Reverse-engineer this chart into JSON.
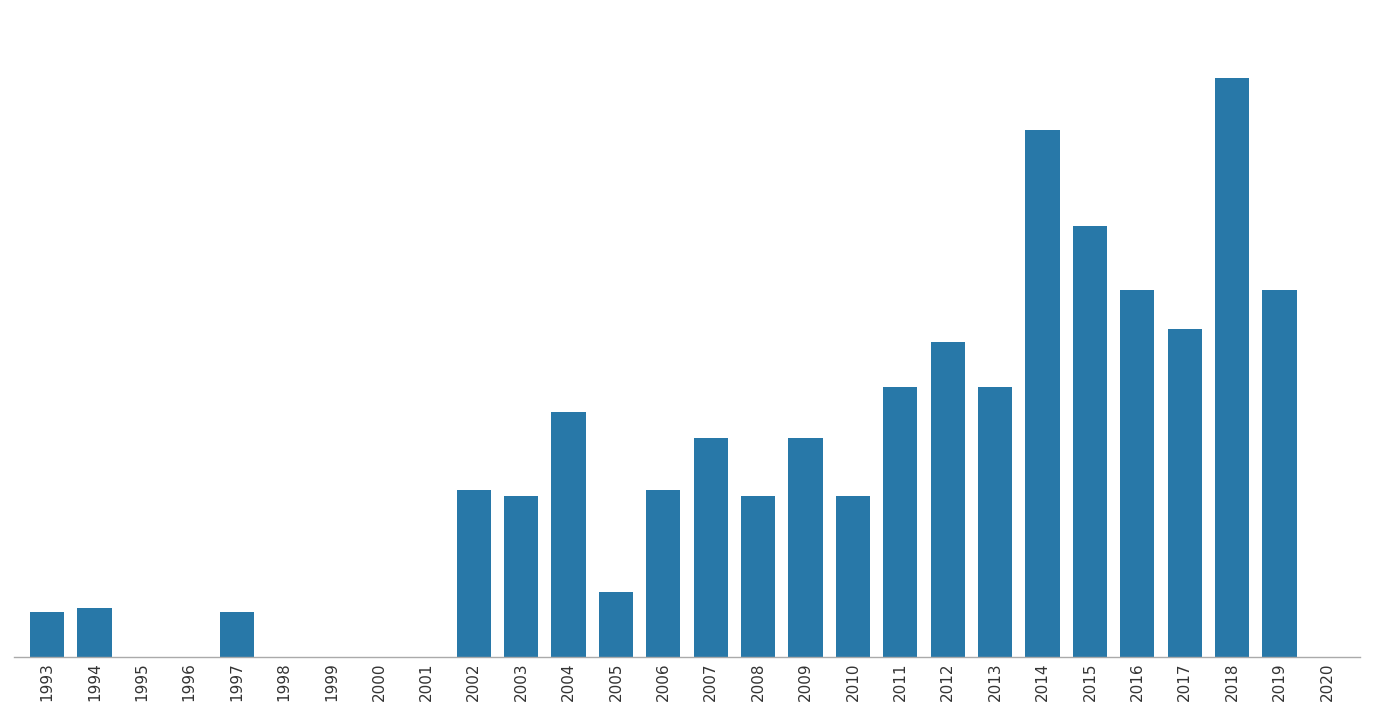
{
  "years": [
    1993,
    1994,
    1995,
    1996,
    1997,
    1998,
    1999,
    2000,
    2001,
    2002,
    2003,
    2004,
    2005,
    2006,
    2007,
    2008,
    2009,
    2010,
    2011,
    2012,
    2013,
    2014,
    2015,
    2016,
    2017,
    2018,
    2019,
    2020
  ],
  "values": [
    7,
    7.5,
    0,
    0,
    7,
    0,
    0,
    0,
    0,
    26,
    25,
    38,
    10,
    26,
    34,
    25,
    34,
    25,
    42,
    49,
    42,
    82,
    67,
    57,
    51,
    90,
    57,
    0
  ],
  "bar_color": "#2878a8",
  "background_color": "#ffffff",
  "xlim_left": 1992.3,
  "xlim_right": 2020.7,
  "ylim_bottom": 0,
  "ylim_top": 100,
  "tick_fontsize": 11,
  "tick_color": "#333333",
  "spine_color": "#aaaaaa",
  "bar_width": 0.72
}
